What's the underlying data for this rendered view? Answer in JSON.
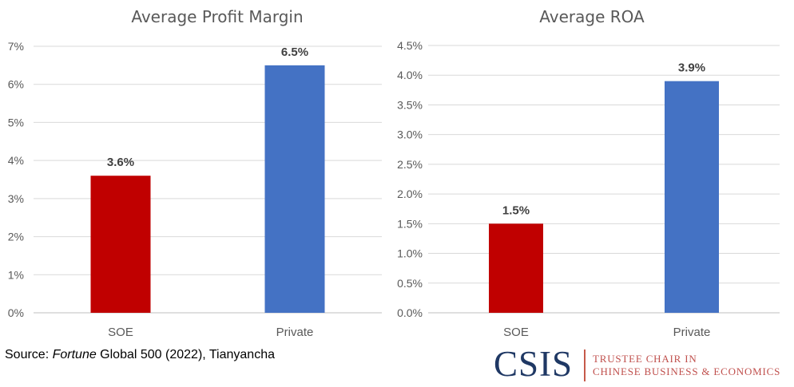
{
  "chart_data": [
    {
      "type": "bar",
      "title": "Average Profit Margin",
      "categories": [
        "SOE",
        "Private"
      ],
      "values": [
        3.6,
        6.5
      ],
      "value_labels": [
        "3.6%",
        "6.5%"
      ],
      "bar_colors": [
        "#c00000",
        "#4472c4"
      ],
      "yticks": [
        "0%",
        "1%",
        "2%",
        "3%",
        "4%",
        "5%",
        "6%",
        "7%"
      ],
      "ylim": [
        0,
        7
      ],
      "ystep": 1,
      "grid": true,
      "xlabel": "",
      "ylabel": ""
    },
    {
      "type": "bar",
      "title": "Average ROA",
      "categories": [
        "SOE",
        "Private"
      ],
      "values": [
        1.5,
        3.9
      ],
      "value_labels": [
        "1.5%",
        "3.9%"
      ],
      "bar_colors": [
        "#c00000",
        "#4472c4"
      ],
      "yticks": [
        "0.0%",
        "0.5%",
        "1.0%",
        "1.5%",
        "2.0%",
        "2.5%",
        "3.0%",
        "3.5%",
        "4.0%",
        "4.5%"
      ],
      "ylim": [
        0,
        4.5
      ],
      "ystep": 0.5,
      "grid": true,
      "xlabel": "",
      "ylabel": ""
    }
  ],
  "source": {
    "prefix": "Source: ",
    "italic": "Fortune",
    "suffix": " Global 500 (2022), Tianyancha"
  },
  "logo": {
    "wordmark": "CSIS",
    "line1": "TRUSTEE CHAIR IN",
    "line2": "CHINESE BUSINESS & ECONOMICS",
    "wordmark_color": "#1f3864",
    "accent_color": "#c0504d"
  }
}
